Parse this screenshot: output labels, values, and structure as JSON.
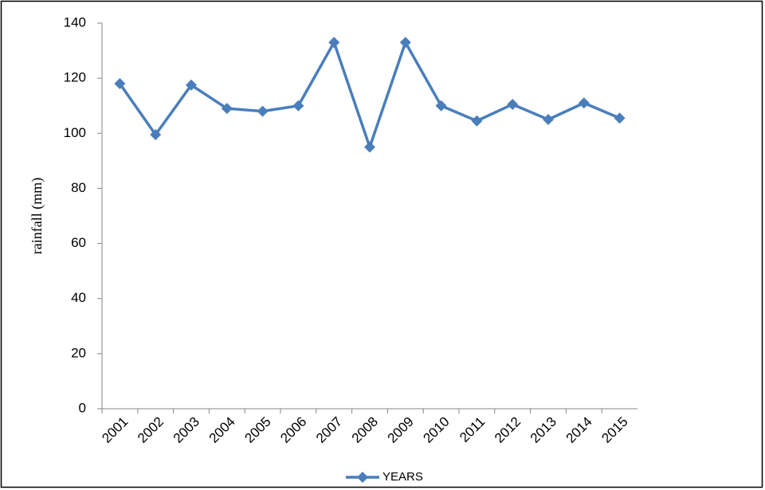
{
  "chart_data": {
    "type": "line",
    "y_label": "rainfall (mm)",
    "categories": [
      "2001",
      "2002",
      "2003",
      "2004",
      "2005",
      "2006",
      "2007",
      "2008",
      "2009",
      "2010",
      "2011",
      "2012",
      "2013",
      "2014",
      "2015"
    ],
    "series": [
      {
        "name": "YEARS",
        "color": "#4a7ebb",
        "values": [
          118,
          99.5,
          117.5,
          109,
          108,
          110,
          133,
          95,
          133,
          110,
          104.5,
          110.5,
          105,
          111,
          105.5
        ]
      }
    ],
    "ylim": [
      0,
      140
    ],
    "yticks": [
      0,
      20,
      40,
      60,
      80,
      100,
      120,
      140
    ],
    "grid": false,
    "legend": "bottom"
  }
}
